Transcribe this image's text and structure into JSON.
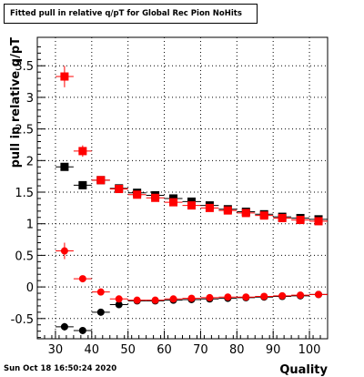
{
  "title": "Fitted pull in relative q/pT for Global Rec Pion NoHits",
  "timestamp": "Sun Oct 18 16:50:24 2020",
  "chart_data": {
    "type": "scatter",
    "title": "Fitted pull in relative q/pT for Global Rec Pion NoHits",
    "xlabel": "Quality",
    "ylabel": "pull in relative q/pT",
    "xlim": [
      25,
      105
    ],
    "ylim": [
      -0.82,
      3.95
    ],
    "x_ticks": [
      30,
      40,
      50,
      60,
      70,
      80,
      90,
      100
    ],
    "y_ticks": [
      -0.5,
      0,
      0.5,
      1,
      1.5,
      2,
      2.5,
      3,
      3.5
    ],
    "grid": true,
    "x": [
      32.5,
      37.5,
      42.5,
      47.5,
      52.5,
      57.5,
      62.5,
      67.5,
      72.5,
      77.5,
      82.5,
      87.5,
      92.5,
      97.5,
      102.5
    ],
    "series": [
      {
        "marker": "square",
        "color": "#000000",
        "values": [
          1.9,
          1.61,
          1.69,
          1.56,
          1.49,
          1.45,
          1.4,
          1.35,
          1.29,
          1.23,
          1.19,
          1.15,
          1.11,
          1.09,
          1.07
        ],
        "errors": [
          0.06,
          0.04,
          0.03,
          0.03,
          0.03,
          0.03,
          0.03,
          0.03,
          0.03,
          0.03,
          0.03,
          0.03,
          0.03,
          0.03,
          0.03
        ]
      },
      {
        "marker": "square",
        "color": "#ff0000",
        "values": [
          3.33,
          2.15,
          1.69,
          1.55,
          1.46,
          1.41,
          1.34,
          1.29,
          1.25,
          1.21,
          1.17,
          1.13,
          1.09,
          1.06,
          1.04
        ],
        "errors": [
          0.17,
          0.09,
          0.05,
          0.04,
          0.03,
          0.03,
          0.03,
          0.03,
          0.03,
          0.03,
          0.03,
          0.03,
          0.03,
          0.03,
          0.03
        ]
      },
      {
        "marker": "circle",
        "color": "#000000",
        "values": [
          -0.63,
          -0.69,
          -0.4,
          -0.28,
          -0.22,
          -0.22,
          -0.21,
          -0.2,
          -0.19,
          -0.18,
          -0.17,
          -0.16,
          -0.15,
          -0.14,
          -0.12
        ],
        "errors": [
          0.06,
          0.04,
          0.03,
          0.02,
          0.02,
          0.02,
          0.02,
          0.02,
          0.02,
          0.02,
          0.02,
          0.02,
          0.02,
          0.02,
          0.02
        ]
      },
      {
        "marker": "circle",
        "color": "#ff0000",
        "values": [
          0.57,
          0.13,
          -0.08,
          -0.19,
          -0.21,
          -0.21,
          -0.19,
          -0.18,
          -0.17,
          -0.16,
          -0.16,
          -0.15,
          -0.14,
          -0.13,
          -0.12
        ],
        "errors": [
          0.13,
          0.04,
          0.03,
          0.02,
          0.02,
          0.02,
          0.02,
          0.02,
          0.02,
          0.02,
          0.02,
          0.02,
          0.02,
          0.02,
          0.02
        ]
      }
    ]
  }
}
